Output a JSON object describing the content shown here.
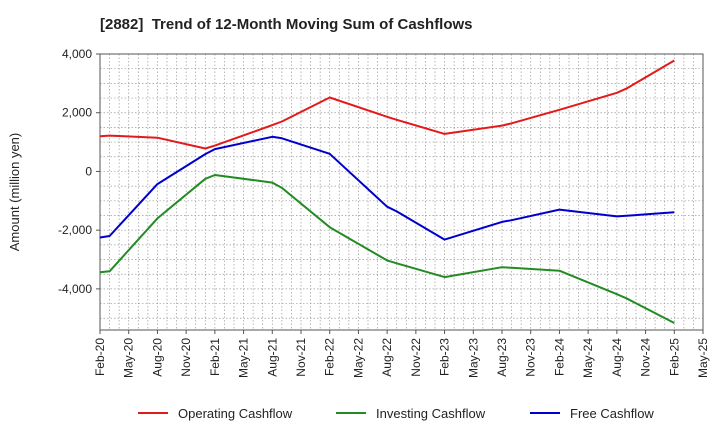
{
  "chart_data": {
    "type": "line",
    "title": "[2882]  Trend of 12-Month Moving Sum of Cashflows",
    "ylabel": "Amount (million yen)",
    "xlabel": "",
    "ylim": [
      -5400,
      4000
    ],
    "yticks": [
      4000,
      2000,
      0,
      -2000,
      -4000
    ],
    "ytick_labels": [
      "4,000",
      "2,000",
      "0",
      "-2,000",
      "-4,000"
    ],
    "xlim": [
      "2020-02",
      "2025-05"
    ],
    "xtick_labels": [
      "Feb-20",
      "May-20",
      "Aug-20",
      "Nov-20",
      "Feb-21",
      "May-21",
      "Aug-21",
      "Nov-21",
      "Feb-22",
      "May-22",
      "Aug-22",
      "Nov-22",
      "Feb-23",
      "May-23",
      "Aug-23",
      "Nov-23",
      "Feb-24",
      "May-24",
      "Aug-24",
      "Nov-24",
      "Feb-25",
      "May-25"
    ],
    "grid": true,
    "legend_position": "bottom",
    "series": [
      {
        "name": "Operating Cashflow",
        "color": "#e31a1c",
        "x": [
          "2020-02",
          "2020-03",
          "2020-08",
          "2021-01",
          "2021-02",
          "2021-08",
          "2021-09",
          "2022-02",
          "2022-08",
          "2022-09",
          "2023-02",
          "2023-08",
          "2023-09",
          "2024-02",
          "2024-08",
          "2024-09",
          "2025-02"
        ],
        "values": [
          1200,
          1220,
          1150,
          780,
          880,
          1580,
          1700,
          2520,
          1860,
          1760,
          1280,
          1560,
          1640,
          2100,
          2680,
          2820,
          3780
        ]
      },
      {
        "name": "Investing Cashflow",
        "color": "#238b23",
        "x": [
          "2020-02",
          "2020-03",
          "2020-08",
          "2021-01",
          "2021-02",
          "2021-08",
          "2021-09",
          "2022-02",
          "2022-08",
          "2022-09",
          "2023-02",
          "2023-08",
          "2023-09",
          "2024-02",
          "2024-08",
          "2024-09",
          "2025-02"
        ],
        "values": [
          -3430,
          -3400,
          -1600,
          -250,
          -120,
          -380,
          -560,
          -1900,
          -3030,
          -3130,
          -3600,
          -3260,
          -3280,
          -3380,
          -4180,
          -4320,
          -5160
        ]
      },
      {
        "name": "Free Cashflow",
        "color": "#0000cd",
        "x": [
          "2020-02",
          "2020-03",
          "2020-08",
          "2021-01",
          "2021-02",
          "2021-08",
          "2021-09",
          "2022-02",
          "2022-08",
          "2022-09",
          "2023-02",
          "2023-08",
          "2023-09",
          "2024-02",
          "2024-08",
          "2024-09",
          "2025-02"
        ],
        "values": [
          -2250,
          -2200,
          -430,
          590,
          760,
          1180,
          1130,
          600,
          -1200,
          -1360,
          -2320,
          -1720,
          -1660,
          -1300,
          -1530,
          -1510,
          -1390
        ]
      }
    ]
  }
}
